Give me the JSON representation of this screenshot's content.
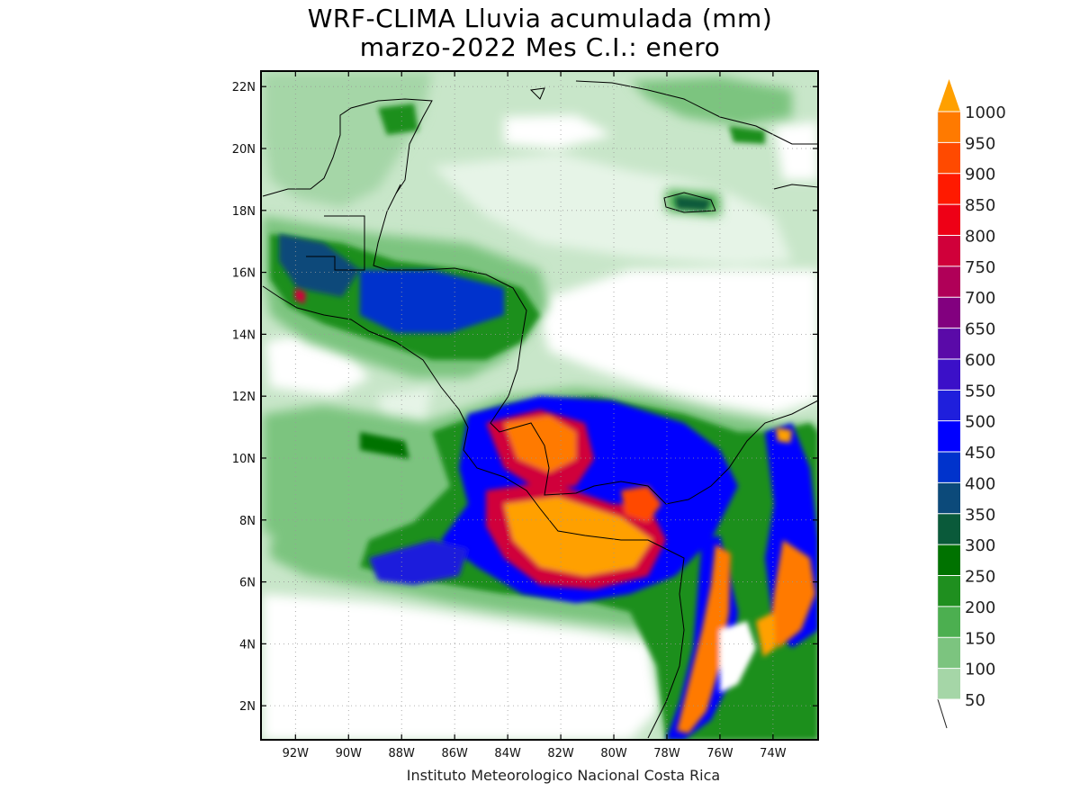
{
  "header": {
    "title_line1": "WRF-CLIMA Lluvia acumulada (mm)",
    "title_line2": "marzo-2022 Mes C.I.: enero"
  },
  "footer": {
    "credit": "Instituto Meteorologico Nacional Costa Rica"
  },
  "map": {
    "lon_range": [
      -93.3,
      -72.3
    ],
    "lat_range": [
      0.9,
      22.5
    ],
    "lat_ticks": [
      {
        "value": 22,
        "label": "22N"
      },
      {
        "value": 20,
        "label": "20N"
      },
      {
        "value": 18,
        "label": "18N"
      },
      {
        "value": 16,
        "label": "16N"
      },
      {
        "value": 14,
        "label": "14N"
      },
      {
        "value": 12,
        "label": "12N"
      },
      {
        "value": 10,
        "label": "10N"
      },
      {
        "value": 8,
        "label": "8N"
      },
      {
        "value": 6,
        "label": "6N"
      },
      {
        "value": 4,
        "label": "4N"
      },
      {
        "value": 2,
        "label": "2N"
      }
    ],
    "lon_ticks": [
      {
        "value": -92,
        "label": "92W"
      },
      {
        "value": -90,
        "label": "90W"
      },
      {
        "value": -88,
        "label": "88W"
      },
      {
        "value": -86,
        "label": "86W"
      },
      {
        "value": -84,
        "label": "84W"
      },
      {
        "value": -82,
        "label": "82W"
      },
      {
        "value": -80,
        "label": "80W"
      },
      {
        "value": -78,
        "label": "78W"
      },
      {
        "value": -76,
        "label": "76W"
      },
      {
        "value": -74,
        "label": "74W"
      }
    ]
  },
  "colorbar": {
    "levels": [
      50,
      100,
      150,
      200,
      250,
      300,
      350,
      400,
      450,
      500,
      550,
      600,
      650,
      700,
      750,
      800,
      850,
      900,
      950,
      1000
    ],
    "colors": [
      "#c8e6c9",
      "#a5d6a7",
      "#7cc47f",
      "#4caf50",
      "#1f8f1f",
      "#007200",
      "#0a5a3a",
      "#0c4a7a",
      "#0033cc",
      "#0000ff",
      "#1f1fdc",
      "#3b10c8",
      "#5a0aa8",
      "#82007f",
      "#b00058",
      "#d0003a",
      "#ee0016",
      "#ff1a00",
      "#ff4a00",
      "#ff7a00",
      "#ffa000"
    ],
    "labels": [
      "50",
      "100",
      "150",
      "200",
      "250",
      "300",
      "350",
      "400",
      "450",
      "500",
      "550",
      "600",
      "650",
      "700",
      "750",
      "800",
      "850",
      "900",
      "950",
      "1000"
    ]
  }
}
